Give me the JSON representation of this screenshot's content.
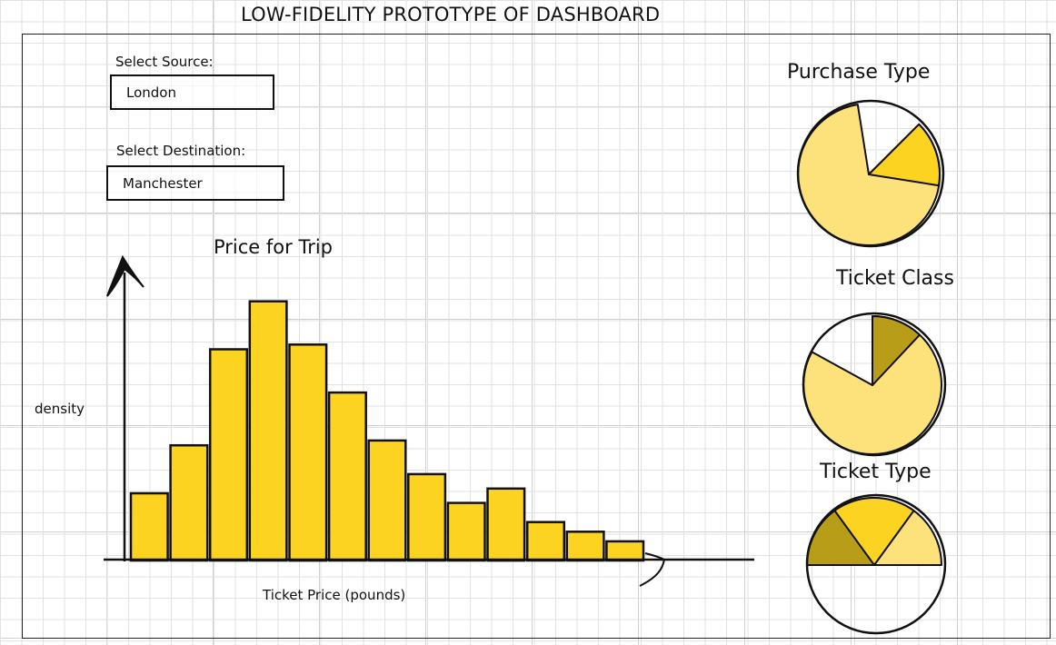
{
  "page": {
    "title": "LOW-FIDELITY PROTOTYPE OF DASHBOARD"
  },
  "filters": {
    "source": {
      "label": "Select Source:",
      "value": "London"
    },
    "destination": {
      "label": "Select Destination:",
      "value": "Manchester"
    }
  },
  "colors": {
    "bar": "#fdd321",
    "pie_light": "#fde17a",
    "pie_mid": "#fdd321",
    "pie_dark": "#b89d19",
    "ink": "#111111"
  },
  "chart_data": {
    "type": "bar",
    "title": "Price for Trip",
    "xlabel": "Ticket Price (pounds)",
    "ylabel": "density",
    "values": [
      1.4,
      2.4,
      4.4,
      5.4,
      4.5,
      3.5,
      2.5,
      1.8,
      1.2,
      1.5,
      0.8,
      0.6,
      0.4
    ],
    "ylim": [
      0,
      6
    ],
    "grid": false,
    "legend": "none"
  },
  "pies": [
    {
      "title": "Purchase Type",
      "slices": [
        0.85,
        0.15
      ],
      "colors": [
        "pie_light",
        "pie_mid"
      ]
    },
    {
      "title": "Ticket Class",
      "slices": [
        0.83,
        0.05,
        0.12
      ],
      "colors": [
        "pie_light",
        "pie_mid",
        "pie_dark"
      ]
    },
    {
      "title": "Ticket Type",
      "slices": [
        0.5,
        0.35,
        0.15
      ],
      "colors": [
        "pie_light",
        "pie_mid",
        "pie_dark"
      ]
    }
  ]
}
